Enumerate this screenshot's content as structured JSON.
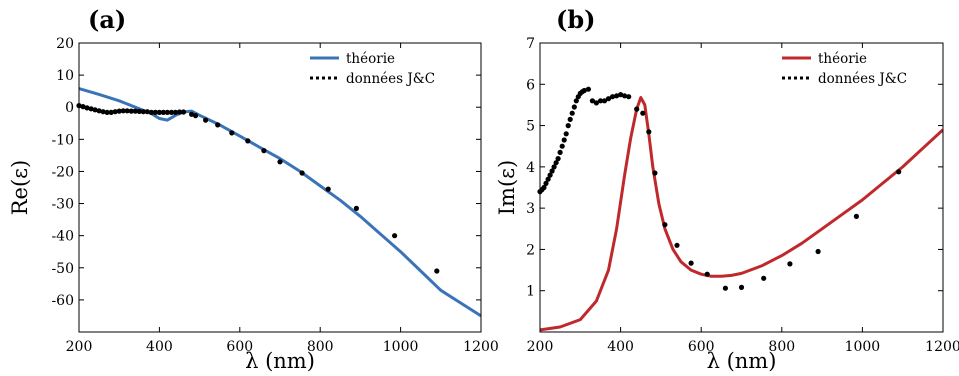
{
  "chart_data": [
    {
      "type": "line",
      "panel": "(a)",
      "xlabel": "λ (nm)",
      "ylabel": "Re(ε)",
      "xlim": [
        200,
        1200
      ],
      "ylim": [
        -70,
        20
      ],
      "xticks": [
        200,
        400,
        600,
        800,
        1000,
        1200
      ],
      "yticks": [
        20,
        10,
        0,
        -10,
        -20,
        -30,
        -40,
        -50,
        -60
      ],
      "legend_position": "top-right",
      "grid": false,
      "series": [
        {
          "name": "théorie",
          "style": "solid",
          "color": "#3b73b9",
          "x": [
            200,
            250,
            300,
            350,
            380,
            400,
            420,
            440,
            460,
            480,
            500,
            550,
            600,
            650,
            700,
            750,
            800,
            850,
            900,
            950,
            1000,
            1050,
            1100,
            1150,
            1200
          ],
          "y": [
            5.8,
            4.0,
            2.0,
            -0.5,
            -2.0,
            -3.5,
            -4.0,
            -2.5,
            -1.5,
            -1.2,
            -2.5,
            -5.5,
            -9.0,
            -12.5,
            -16.0,
            -20.0,
            -24.5,
            -29.0,
            -34.0,
            -39.5,
            -45.0,
            -51.0,
            -57.0,
            -61.0,
            -65.0
          ]
        },
        {
          "name": "données J&C",
          "style": "dotted",
          "color": "#000000",
          "x": [
            200,
            210,
            220,
            230,
            240,
            250,
            260,
            270,
            280,
            290,
            300,
            310,
            320,
            330,
            340,
            350,
            360,
            370,
            380,
            390,
            400,
            410,
            420,
            430,
            440,
            450,
            460,
            480,
            490,
            515,
            545,
            580,
            620,
            660,
            700,
            755,
            820,
            890,
            985,
            1090
          ],
          "y": [
            0.5,
            0.2,
            -0.2,
            -0.5,
            -0.8,
            -1.1,
            -1.4,
            -1.6,
            -1.6,
            -1.4,
            -1.2,
            -1.1,
            -1.1,
            -1.2,
            -1.2,
            -1.3,
            -1.4,
            -1.4,
            -1.6,
            -1.6,
            -1.6,
            -1.6,
            -1.6,
            -1.6,
            -1.6,
            -1.5,
            -1.5,
            -2.2,
            -2.6,
            -4.0,
            -5.5,
            -8.0,
            -10.5,
            -13.5,
            -17.0,
            -20.5,
            -25.5,
            -31.5,
            -40.0,
            -51.0
          ]
        }
      ]
    },
    {
      "type": "line",
      "panel": "(b)",
      "xlabel": "λ (nm)",
      "ylabel": "Im(ε)",
      "xlim": [
        200,
        1200
      ],
      "ylim": [
        0,
        7
      ],
      "xticks": [
        200,
        400,
        600,
        800,
        1000,
        1200
      ],
      "yticks": [
        7,
        6,
        5,
        4,
        3,
        2,
        1
      ],
      "legend_position": "top-right",
      "grid": false,
      "series": [
        {
          "name": "théorie",
          "style": "solid",
          "color": "#c0292c",
          "x": [
            200,
            250,
            300,
            340,
            370,
            390,
            410,
            425,
            440,
            450,
            460,
            470,
            480,
            495,
            510,
            530,
            550,
            575,
            600,
            625,
            650,
            675,
            700,
            750,
            800,
            850,
            900,
            950,
            1000,
            1050,
            1100,
            1150,
            1200
          ],
          "y": [
            0.05,
            0.12,
            0.3,
            0.75,
            1.5,
            2.5,
            3.8,
            4.7,
            5.4,
            5.68,
            5.5,
            4.8,
            4.0,
            3.1,
            2.5,
            2.0,
            1.7,
            1.5,
            1.4,
            1.35,
            1.35,
            1.37,
            1.42,
            1.6,
            1.85,
            2.15,
            2.5,
            2.85,
            3.2,
            3.6,
            4.0,
            4.45,
            4.9
          ]
        },
        {
          "name": "données J&C",
          "style": "dotted",
          "color": "#000000",
          "x": [
            200,
            205,
            210,
            215,
            220,
            225,
            230,
            235,
            240,
            245,
            250,
            255,
            260,
            265,
            270,
            275,
            280,
            285,
            290,
            295,
            300,
            305,
            310,
            320,
            330,
            340,
            350,
            360,
            370,
            380,
            390,
            400,
            410,
            420,
            440,
            455,
            470,
            485,
            510,
            540,
            575,
            615,
            660,
            700,
            755,
            820,
            890,
            985,
            1090
          ],
          "y": [
            3.4,
            3.45,
            3.5,
            3.6,
            3.7,
            3.8,
            3.9,
            4.0,
            4.1,
            4.2,
            4.35,
            4.5,
            4.65,
            4.8,
            5.0,
            5.15,
            5.3,
            5.45,
            5.6,
            5.7,
            5.78,
            5.82,
            5.85,
            5.88,
            5.6,
            5.55,
            5.6,
            5.6,
            5.65,
            5.7,
            5.72,
            5.75,
            5.72,
            5.7,
            5.4,
            5.3,
            4.85,
            3.85,
            2.6,
            2.1,
            1.67,
            1.4,
            1.06,
            1.08,
            1.3,
            1.65,
            1.95,
            2.8,
            3.88
          ]
        }
      ]
    }
  ]
}
